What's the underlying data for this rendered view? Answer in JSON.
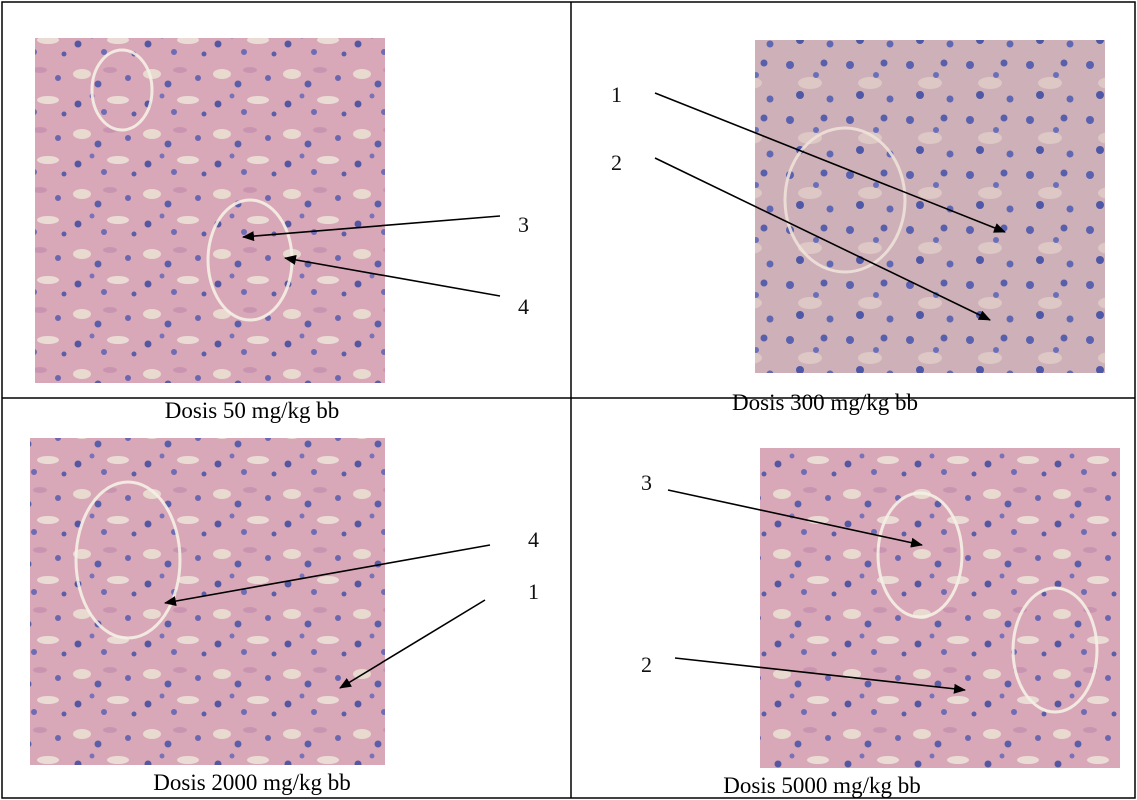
{
  "panels": [
    {
      "caption": "Dosis 50 mg/kg bb",
      "labels": [
        "3",
        "4"
      ]
    },
    {
      "caption": "Dosis 300 mg/kg bb",
      "labels": [
        "1",
        "2"
      ]
    },
    {
      "caption": "Dosis 2000 mg/kg bb",
      "labels": [
        "4",
        "1"
      ]
    },
    {
      "caption": "Dosis 5000 mg/kg bb",
      "labels": [
        "3",
        "2"
      ]
    }
  ]
}
